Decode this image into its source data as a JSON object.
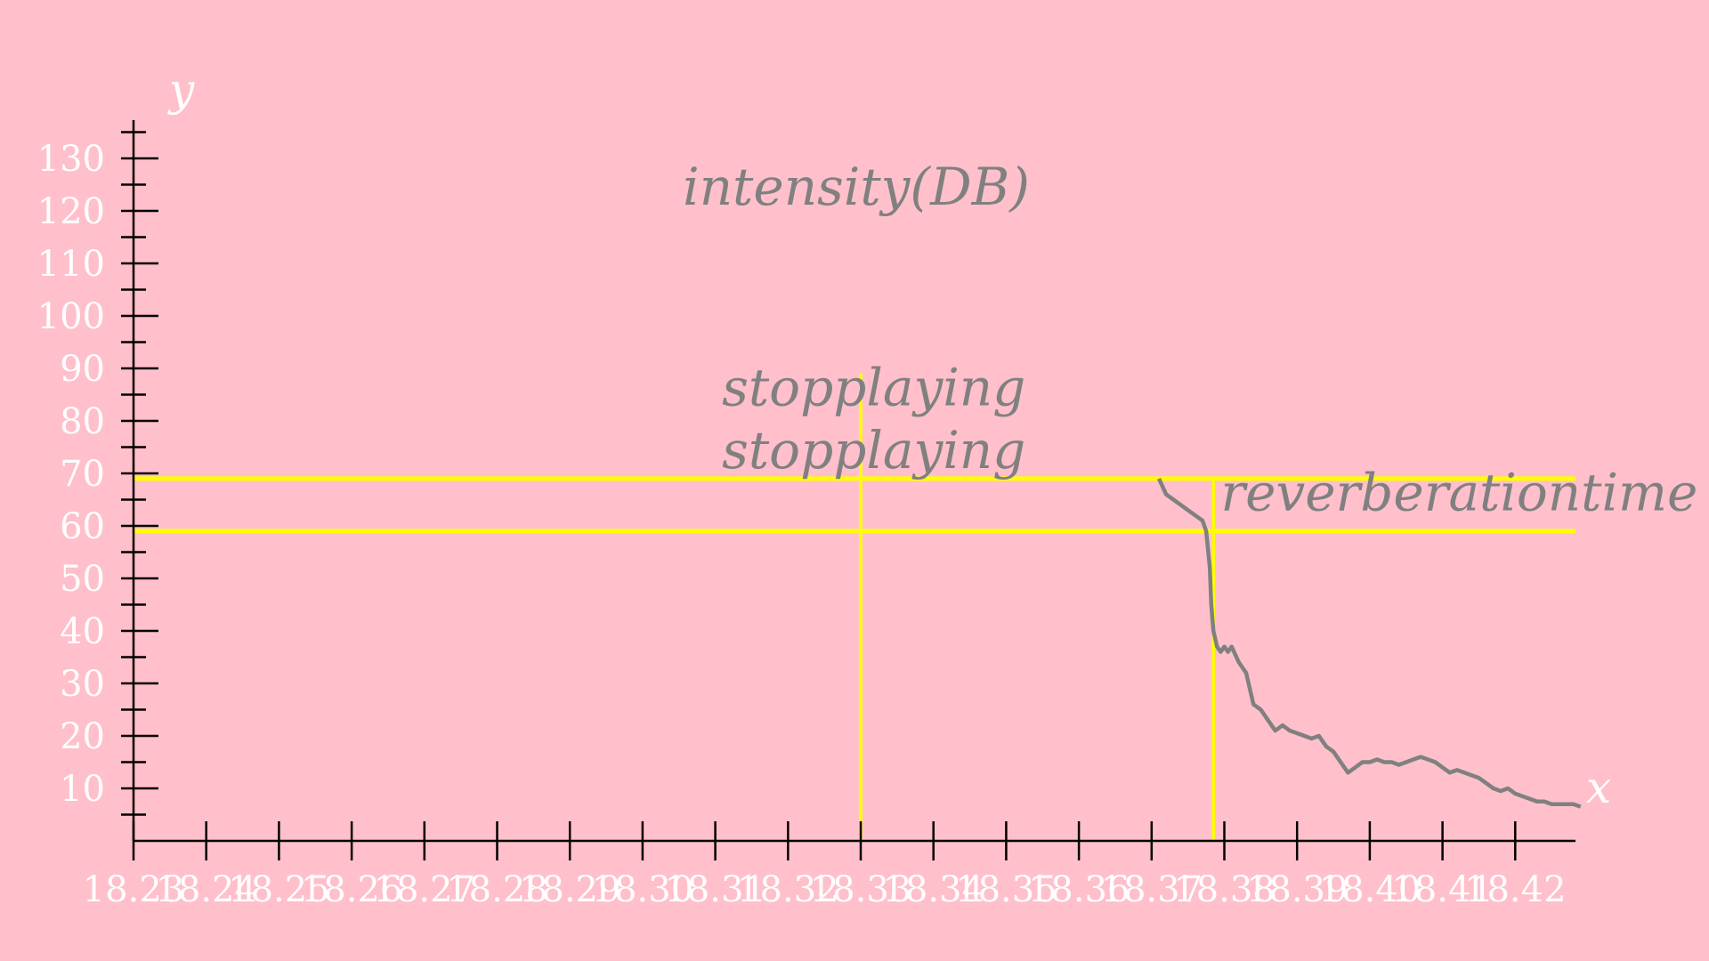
{
  "chart_data": {
    "type": "line",
    "xlabel": "x",
    "ylabel": "y",
    "title": "intensity(DB)",
    "xlim": [
      18.23,
      18.43
    ],
    "ylim": [
      0,
      135
    ],
    "x_ticks": [
      "18.23",
      "18.24",
      "18.25",
      "18.26",
      "18.27",
      "18.28",
      "18.29",
      "18.30",
      "18.31",
      "18.32",
      "18.33",
      "18.34",
      "18.35",
      "18.36",
      "18.37",
      "18.38",
      "18.39",
      "18.40",
      "18.41",
      "18.42"
    ],
    "y_ticks": [
      "10",
      "20",
      "30",
      "40",
      "50",
      "60",
      "70",
      "80",
      "90",
      "100",
      "110",
      "120",
      "130"
    ],
    "series": [
      {
        "color": "#808080",
        "x": [
          18.371,
          18.372,
          18.373,
          18.374,
          18.375,
          18.376,
          18.377,
          18.3775,
          18.378,
          18.3782,
          18.3785,
          18.379,
          18.3795,
          18.38,
          18.3805,
          18.381,
          18.382,
          18.383,
          18.384,
          18.385,
          18.386,
          18.387,
          18.388,
          18.389,
          18.39,
          18.391,
          18.392,
          18.393,
          18.394,
          18.395,
          18.396,
          18.397,
          18.398,
          18.399,
          18.4,
          18.401,
          18.402,
          18.403,
          18.404,
          18.405,
          18.406,
          18.407,
          18.408,
          18.409,
          18.41,
          18.411,
          18.412,
          18.413,
          18.414,
          18.415,
          18.416,
          18.417,
          18.418,
          18.419,
          18.42,
          18.421,
          18.422,
          18.423,
          18.424,
          18.425,
          18.426,
          18.427,
          18.428,
          18.429
        ],
        "y": [
          69,
          66,
          65,
          64,
          63,
          62,
          61,
          59,
          52,
          45,
          40,
          37,
          36,
          37,
          36,
          37,
          34,
          32,
          26,
          25,
          23,
          21,
          22,
          21,
          20.5,
          20,
          19.5,
          20,
          18,
          17,
          15,
          13,
          14,
          15,
          15,
          15.5,
          15,
          15,
          14.5,
          15,
          15.5,
          16,
          15.5,
          15,
          14,
          13,
          13.5,
          13,
          12.5,
          12,
          11,
          10,
          9.5,
          10,
          9,
          8.5,
          8,
          7.5,
          7.5,
          7,
          7,
          7,
          7,
          6.5
        ]
      }
    ],
    "reference_lines": {
      "horizontal": [
        69,
        59
      ],
      "vertical": [
        18.33,
        18.3785
      ],
      "color": "#ffff00"
    },
    "annotations": [
      {
        "text": "stopplaying",
        "x": 18.3305,
        "y": 83
      },
      {
        "text": "stopplaying",
        "x": 18.3305,
        "y": 71
      },
      {
        "text": "reverberationtime",
        "x": 18.3795,
        "y": 63
      }
    ]
  }
}
